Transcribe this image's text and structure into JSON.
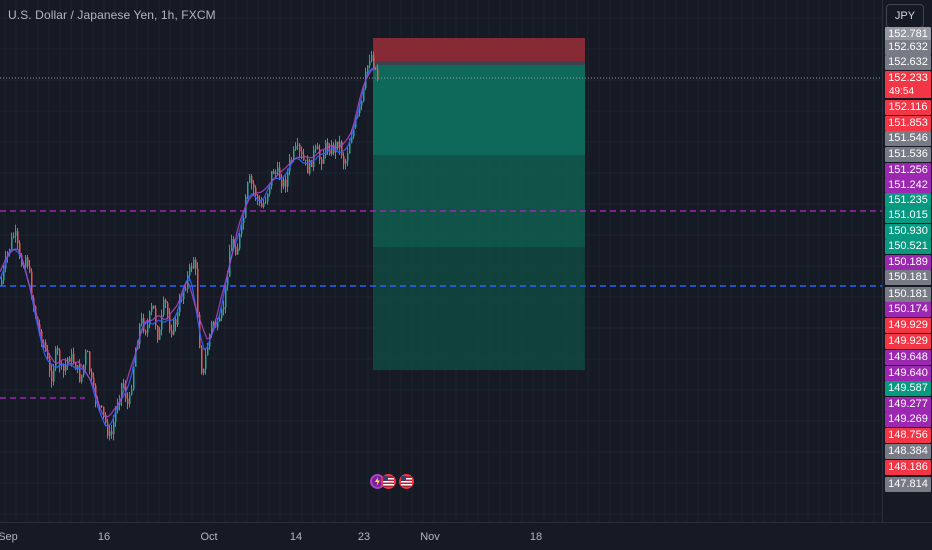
{
  "header": {
    "symbol_title": "U.S. Dollar / Japanese Yen, 1h, FXCM",
    "currency_button": "JPY"
  },
  "colors": {
    "background": "#161a25",
    "grid": "#1f2330",
    "bull": "#26a69a",
    "bear": "#ef5350",
    "purple_line": "#9c27b0",
    "blue_line": "#2962ff",
    "target_zone": "#0f6e5d",
    "stop_zone": "#8c2c36"
  },
  "price_axis": {
    "labels": [
      {
        "text": "152.781",
        "color": "#9598a1"
      },
      {
        "text": "152.632",
        "color": "#787b86"
      },
      {
        "text": "152.632",
        "color": "#787b86"
      },
      {
        "text": "152.233",
        "color": "#f23645"
      },
      {
        "text": "152.116",
        "color": "#f23645"
      },
      {
        "text": "151.853",
        "color": "#f23645"
      },
      {
        "text": "151.546",
        "color": "#787b86"
      },
      {
        "text": "151.536",
        "color": "#787b86"
      },
      {
        "text": "151.256",
        "color": "#9c27b0"
      },
      {
        "text": "151.242",
        "color": "#9c27b0"
      },
      {
        "text": "151.235",
        "color": "#089981"
      },
      {
        "text": "151.015",
        "color": "#089981"
      },
      {
        "text": "150.930",
        "color": "#089981"
      },
      {
        "text": "150.521",
        "color": "#089981"
      },
      {
        "text": "150.189",
        "color": "#9c27b0"
      },
      {
        "text": "150.181",
        "color": "#787b86"
      },
      {
        "text": "150.181",
        "color": "#787b86"
      },
      {
        "text": "150.174",
        "color": "#9c27b0"
      },
      {
        "text": "149.929",
        "color": "#f23645"
      },
      {
        "text": "149.929",
        "color": "#f23645"
      },
      {
        "text": "149.648",
        "color": "#9c27b0"
      },
      {
        "text": "149.640",
        "color": "#9c27b0"
      },
      {
        "text": "149.587",
        "color": "#089981"
      },
      {
        "text": "149.277",
        "color": "#9c27b0"
      },
      {
        "text": "149.269",
        "color": "#9c27b0"
      },
      {
        "text": "148.756",
        "color": "#f23645"
      },
      {
        "text": "148.384",
        "color": "#787b86"
      },
      {
        "text": "148.186",
        "color": "#f23645"
      },
      {
        "text": "147.814",
        "color": "#787b86"
      }
    ],
    "countdown": "49:54"
  },
  "time_axis": {
    "labels": [
      "Sep",
      "16",
      "Oct",
      "14",
      "23",
      "Nov",
      "18"
    ]
  },
  "events": {
    "icons": [
      "lightning-event-icon",
      "us-flag-event-icon",
      "us-flag-event-icon"
    ]
  }
}
